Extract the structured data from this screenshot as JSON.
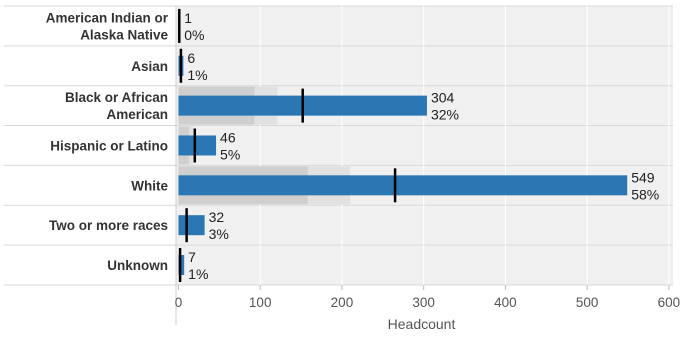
{
  "chart_data": {
    "type": "bar",
    "subtype": "bullet",
    "categories": [
      "American Indian or Alaska Native",
      "Asian",
      "Black or African American",
      "Hispanic or Latino",
      "White",
      "Two or more races",
      "Unknown"
    ],
    "category_lines": [
      [
        "American Indian or",
        "Alaska Native"
      ],
      [
        "Asian"
      ],
      [
        "Black or African",
        "American"
      ],
      [
        "Hispanic or Latino"
      ],
      [
        "White"
      ],
      [
        "Two or more races"
      ],
      [
        "Unknown"
      ]
    ],
    "values": [
      1,
      6,
      304,
      46,
      549,
      32,
      7
    ],
    "percent_labels": [
      "0%",
      "1%",
      "32%",
      "5%",
      "58%",
      "3%",
      "1%"
    ],
    "reference_marks": [
      1,
      3,
      152,
      20,
      265,
      10,
      2
    ],
    "bands": [
      [
        0,
        0
      ],
      [
        0,
        0
      ],
      [
        93,
        121
      ],
      [
        13,
        18
      ],
      [
        158,
        210
      ],
      [
        0,
        0
      ],
      [
        0,
        0
      ]
    ],
    "xlabel": "Headcount",
    "xlim": [
      -3,
      605
    ],
    "xticks": [
      0,
      100,
      200,
      300,
      400,
      500,
      600
    ],
    "grid": true,
    "colors": {
      "bar": "#2a77b4",
      "band_dark": "#cfcfcf",
      "band_light": "#e1e1e1",
      "row_bg": "#f0f0f0",
      "reference_mark": "#000000",
      "grid": "#ffffff",
      "text": "#333333"
    }
  }
}
